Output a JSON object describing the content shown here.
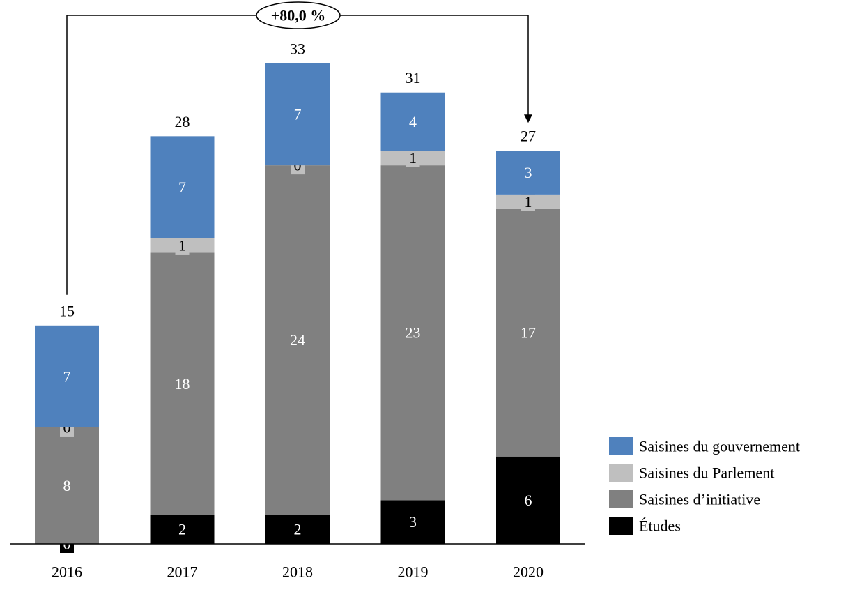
{
  "chart_data": {
    "type": "bar",
    "stacked": true,
    "categories": [
      "2016",
      "2017",
      "2018",
      "2019",
      "2020"
    ],
    "series": [
      {
        "name": "Études",
        "values": [
          0,
          2,
          2,
          3,
          6
        ],
        "color": "#000000",
        "label_color": "#ffffff"
      },
      {
        "name": "Saisines d’initiative",
        "values": [
          8,
          18,
          24,
          23,
          17
        ],
        "color": "#808080",
        "label_color": "#ffffff"
      },
      {
        "name": "Saisines du Parlement",
        "values": [
          0,
          1,
          0,
          1,
          1
        ],
        "color": "#bfbfbf",
        "label_color": "#000000"
      },
      {
        "name": "Saisines du gouvernement",
        "values": [
          7,
          7,
          7,
          4,
          3
        ],
        "color": "#4f81bd",
        "label_color": "#ffffff"
      }
    ],
    "totals": [
      15,
      28,
      33,
      31,
      27
    ],
    "annotation": {
      "text": "+80,0 %",
      "from": "2016",
      "to": "2020"
    },
    "ylim": [
      0,
      33
    ],
    "legend_position": "bottom-right",
    "legend_order": [
      "Saisines du gouvernement",
      "Saisines du Parlement",
      "Saisines d’initiative",
      "Études"
    ],
    "grid": false
  }
}
